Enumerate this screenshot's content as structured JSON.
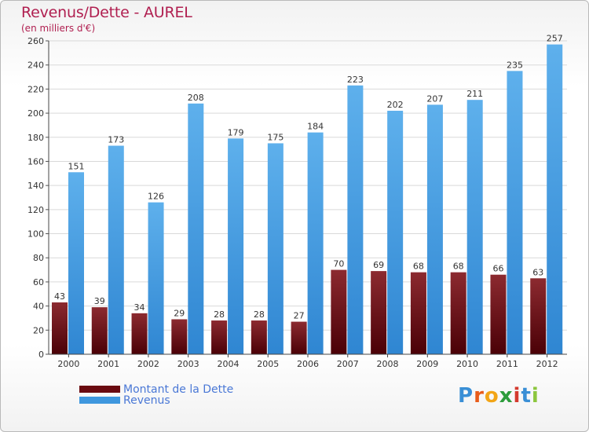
{
  "title": "Revenus/Dette - AUREL",
  "subtitle": "(en milliers d'€)",
  "colors": {
    "dette": "#6a0a10",
    "revenus": "#3f97de",
    "title": "#b01f50",
    "grid": "#d9d9d9"
  },
  "legend": {
    "dette_label": "Montant de la Dette",
    "revenus_label": "Revenus"
  },
  "logo": {
    "text": "Proxiti"
  },
  "chart_data": {
    "type": "bar",
    "categories": [
      "2000",
      "2001",
      "2002",
      "2003",
      "2004",
      "2005",
      "2006",
      "2007",
      "2008",
      "2009",
      "2010",
      "2011",
      "2012"
    ],
    "series": [
      {
        "name": "Montant de la Dette",
        "values": [
          43,
          39,
          34,
          29,
          28,
          28,
          27,
          70,
          69,
          68,
          68,
          66,
          63
        ]
      },
      {
        "name": "Revenus",
        "values": [
          151,
          173,
          126,
          208,
          179,
          175,
          184,
          223,
          202,
          207,
          211,
          235,
          257
        ]
      }
    ],
    "ylim": [
      0,
      260
    ],
    "yticks": [
      0,
      20,
      40,
      60,
      80,
      100,
      120,
      140,
      160,
      180,
      200,
      220,
      240,
      260
    ],
    "grid": true,
    "legend_position": "bottom-left"
  }
}
